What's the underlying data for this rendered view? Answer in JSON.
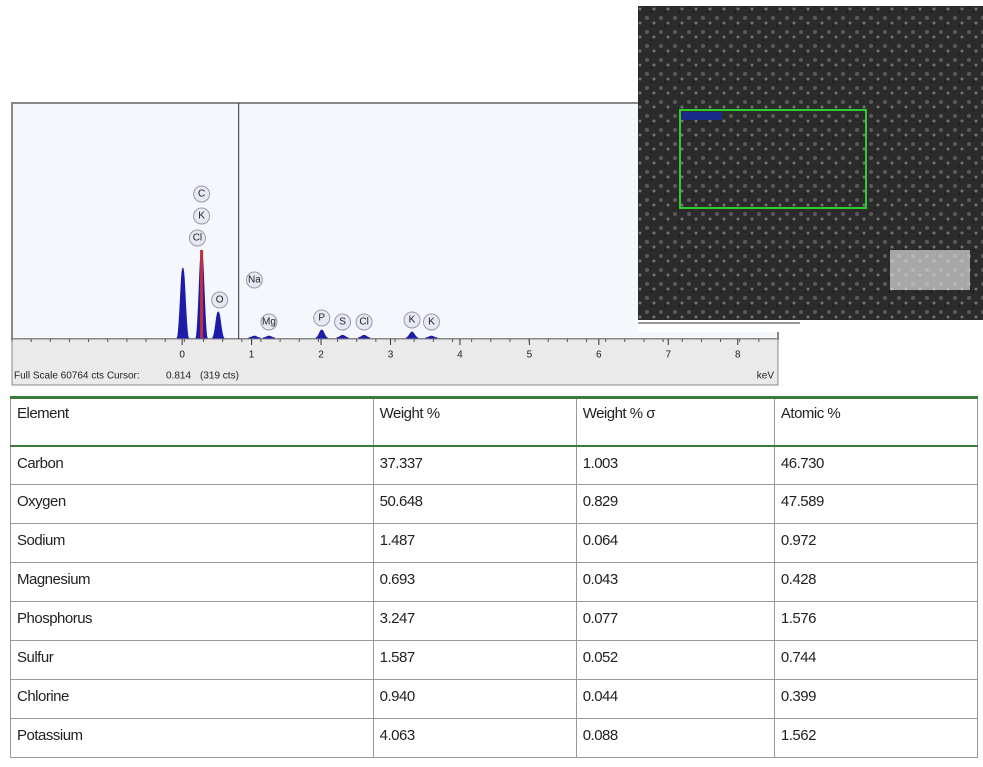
{
  "chart_data": {
    "type": "spectrum",
    "x_unit": "keV",
    "xlim": [
      -2.45,
      8.58
    ],
    "xticks": [
      0,
      1,
      2,
      3,
      4,
      5,
      6,
      7,
      8
    ],
    "ylim": [
      0,
      60764
    ],
    "x": [
      0.01,
      0.28,
      0.52,
      1.04,
      1.25,
      2.01,
      2.31,
      2.62,
      3.31,
      3.59
    ],
    "values": [
      18250,
      22950,
      6780,
      500,
      500,
      2090,
      700,
      700,
      1570,
      500
    ],
    "color": "#1c1ca8",
    "peak_labels": [
      {
        "text": "Cl",
        "x": 0.22
      },
      {
        "text": "K",
        "x": 0.28
      },
      {
        "text": "C",
        "x": 0.28
      },
      {
        "text": "O",
        "x": 0.54
      },
      {
        "text": "Na",
        "x": 1.04
      },
      {
        "text": "Mg",
        "x": 1.25
      },
      {
        "text": "P",
        "x": 2.01
      },
      {
        "text": "S",
        "x": 2.31
      },
      {
        "text": "Cl",
        "x": 2.62
      },
      {
        "text": "K",
        "x": 3.31
      },
      {
        "text": "K",
        "x": 3.59
      }
    ],
    "footer_prefix": "Full Scale 60764 cts Cursor:",
    "cursor": 0.814,
    "cursor_counts": "(319 cts)"
  },
  "table": {
    "header": [
      "Element",
      "Weight %",
      "Weight % σ",
      "Atomic %"
    ],
    "rows": [
      [
        "Carbon",
        "37.337",
        "1.003",
        "46.730"
      ],
      [
        "Oxygen",
        "50.648",
        "0.829",
        "47.589"
      ],
      [
        "Sodium",
        "1.487",
        "0.064",
        "0.972"
      ],
      [
        "Magnesium",
        "0.693",
        "0.043",
        "0.428"
      ],
      [
        "Phosphorus",
        "3.247",
        "0.077",
        "1.576"
      ],
      [
        "Sulfur",
        "1.587",
        "0.052",
        "0.744"
      ],
      [
        "Chlorine",
        "0.940",
        "0.044",
        "0.399"
      ],
      [
        "Potassium",
        "4.063",
        "0.088",
        "1.562"
      ]
    ]
  }
}
